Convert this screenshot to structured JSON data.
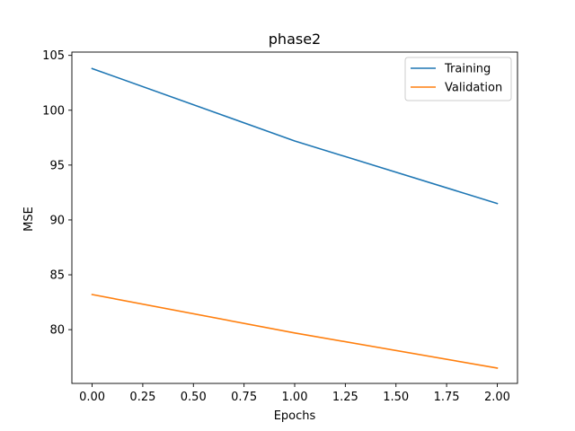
{
  "chart_data": {
    "type": "line",
    "title": "phase2",
    "xlabel": "Epochs",
    "ylabel": "MSE",
    "xlim": [
      -0.1,
      2.1
    ],
    "ylim": [
      75.1,
      105.3
    ],
    "xticks": [
      0.0,
      0.25,
      0.5,
      0.75,
      1.0,
      1.25,
      1.5,
      1.75,
      2.0
    ],
    "xtick_labels": [
      "0.00",
      "0.25",
      "0.50",
      "0.75",
      "1.00",
      "1.25",
      "1.50",
      "1.75",
      "2.00"
    ],
    "yticks": [
      80,
      85,
      90,
      95,
      100,
      105
    ],
    "ytick_labels": [
      "80",
      "85",
      "90",
      "95",
      "100",
      "105"
    ],
    "grid": false,
    "legend_position": "top-right",
    "x": [
      0,
      1,
      2
    ],
    "series": [
      {
        "name": "Training",
        "values": [
          103.8,
          97.2,
          91.5
        ],
        "color": "#1f77b4"
      },
      {
        "name": "Validation",
        "values": [
          83.2,
          79.7,
          76.5
        ],
        "color": "#ff7f0e"
      }
    ]
  }
}
